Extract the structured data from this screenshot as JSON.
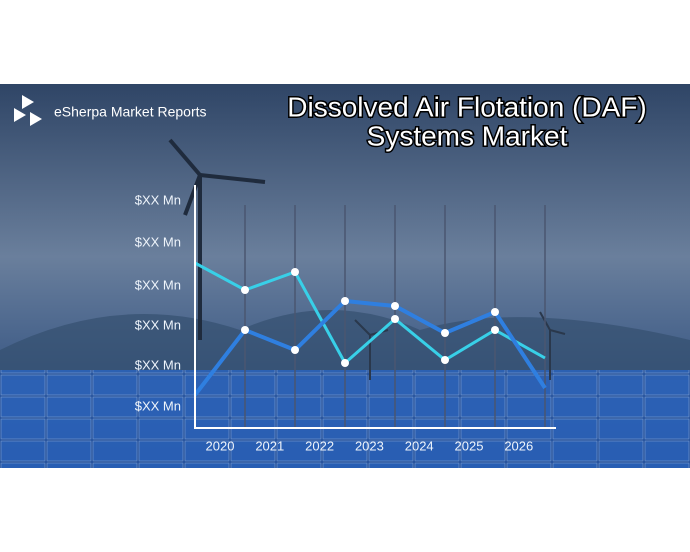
{
  "brand": "eSherpa Market Reports",
  "title": [
    "Dissolved Air Flotation (DAF)",
    "Systems Market"
  ],
  "y_labels": [
    "$XX Mn",
    "$XX Mn",
    "$XX Mn",
    "$XX Mn",
    "$XX Mn",
    "$XX Mn"
  ],
  "x_labels": [
    "2020",
    "2021",
    "2022",
    "2023",
    "2024",
    "2025",
    "2026"
  ]
}
